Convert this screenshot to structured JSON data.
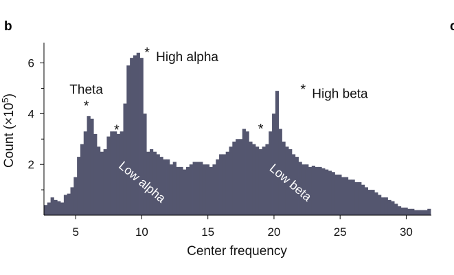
{
  "panel_label": "b",
  "edge_label": "c",
  "chart_data": {
    "type": "bar",
    "xlabel": "Center frequency",
    "ylabel": "Count (×10",
    "ylabel_sup": "5",
    "ylabel_close": ")",
    "xlim": [
      2.6,
      31.9
    ],
    "ylim": [
      0,
      6.8
    ],
    "xticks": [
      5,
      10,
      15,
      20,
      25,
      30
    ],
    "yticks": [
      2,
      4,
      6
    ],
    "yticks_minor": [
      1,
      3,
      5
    ],
    "bin_width": 0.25,
    "bar_color": "#54566f",
    "x_start": 2.6,
    "values": [
      0.4,
      0.5,
      0.7,
      0.6,
      0.55,
      0.5,
      0.8,
      0.85,
      1.1,
      1.5,
      2.3,
      2.8,
      3.3,
      3.9,
      3.8,
      3.2,
      2.7,
      2.5,
      2.6,
      3.1,
      3.3,
      3.3,
      3.2,
      3.3,
      4.4,
      5.9,
      6.2,
      6.3,
      6.4,
      6.2,
      4.0,
      2.5,
      2.6,
      2.5,
      2.4,
      2.3,
      2.2,
      2.2,
      2.0,
      2.1,
      1.9,
      1.9,
      1.8,
      1.9,
      2.0,
      2.1,
      2.1,
      2.1,
      2.0,
      2.0,
      1.9,
      2.0,
      2.2,
      2.4,
      2.4,
      2.5,
      2.7,
      2.9,
      3.0,
      3.0,
      3.4,
      3.3,
      2.9,
      2.8,
      2.7,
      2.6,
      2.7,
      2.8,
      3.3,
      4.0,
      4.9,
      3.4,
      2.9,
      2.7,
      2.6,
      2.4,
      2.3,
      2.1,
      2.0,
      2.0,
      1.9,
      1.95,
      1.9,
      1.9,
      1.85,
      1.8,
      1.75,
      1.7,
      1.6,
      1.6,
      1.5,
      1.5,
      1.4,
      1.4,
      1.3,
      1.3,
      1.2,
      1.1,
      1.0,
      1.0,
      0.9,
      0.8,
      0.7,
      0.7,
      0.6,
      0.55,
      0.45,
      0.35,
      0.3,
      0.3,
      0.25,
      0.25,
      0.2,
      0.2,
      0.2,
      0.2,
      0.25
    ],
    "annotations": [
      {
        "text": "Theta",
        "star_x": 5.8,
        "star_y": 4.4
      },
      {
        "text": "",
        "star_x": 8.1,
        "star_y": 3.45
      },
      {
        "text": "High alpha",
        "star_x": 10.4,
        "star_y": 6.5
      },
      {
        "text": "",
        "star_x": 19.0,
        "star_y": 3.5
      },
      {
        "text": "High beta",
        "star_x": 22.2,
        "star_y": 5.05
      }
    ],
    "band_labels": [
      {
        "text": "Low alpha",
        "x": 8.2,
        "y": 1.9
      },
      {
        "text": "Low beta",
        "x": 19.6,
        "y": 1.8
      }
    ]
  }
}
